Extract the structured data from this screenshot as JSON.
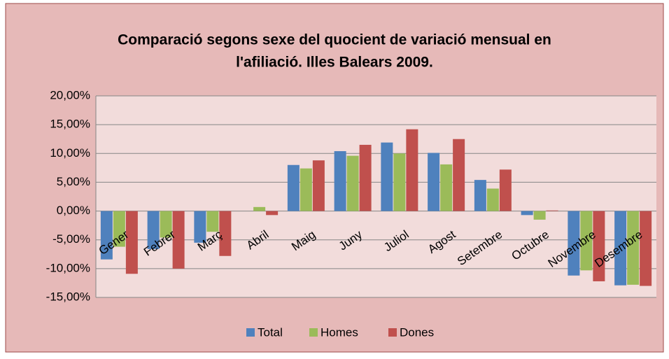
{
  "chart_data": {
    "type": "bar",
    "title": [
      "Comparació segons sexe del quocient de variació mensual en",
      "l'afiliació. Illes Balears 2009."
    ],
    "categories": [
      "Gener",
      "Febrer",
      "Març",
      "Abril",
      "Maig",
      "Juny",
      "Juliol",
      "Agost",
      "Setembre",
      "Octubre",
      "Novembre",
      "Desembre"
    ],
    "series": [
      {
        "name": "Total",
        "color": "#4f81bd",
        "values": [
          -8.4,
          -6.6,
          -5.5,
          0.0,
          8.0,
          10.4,
          11.9,
          10.1,
          5.4,
          -0.7,
          -11.2,
          -12.9
        ]
      },
      {
        "name": "Homes",
        "color": "#9bbb59",
        "values": [
          -6.2,
          -4.6,
          -3.6,
          0.7,
          7.4,
          9.6,
          10.0,
          8.1,
          3.9,
          -1.5,
          -10.3,
          -12.8
        ]
      },
      {
        "name": "Dones",
        "color": "#c0504d",
        "values": [
          -10.9,
          -10.0,
          -7.8,
          -0.7,
          8.8,
          11.5,
          14.2,
          12.5,
          7.2,
          0.1,
          -12.2,
          -13.0
        ]
      }
    ],
    "ylim": [
      -15,
      20
    ],
    "yticks": [
      {
        "value": -15,
        "label": "-15,00%"
      },
      {
        "value": -10,
        "label": "-10,00%"
      },
      {
        "value": -5,
        "label": "-5,00%"
      },
      {
        "value": 0,
        "label": "0,00%"
      },
      {
        "value": 5,
        "label": "5,00%"
      },
      {
        "value": 10,
        "label": "10,00%"
      },
      {
        "value": 15,
        "label": "15,00%"
      },
      {
        "value": 20,
        "label": "20,00%"
      }
    ],
    "grid": true,
    "legend": "bottom"
  }
}
